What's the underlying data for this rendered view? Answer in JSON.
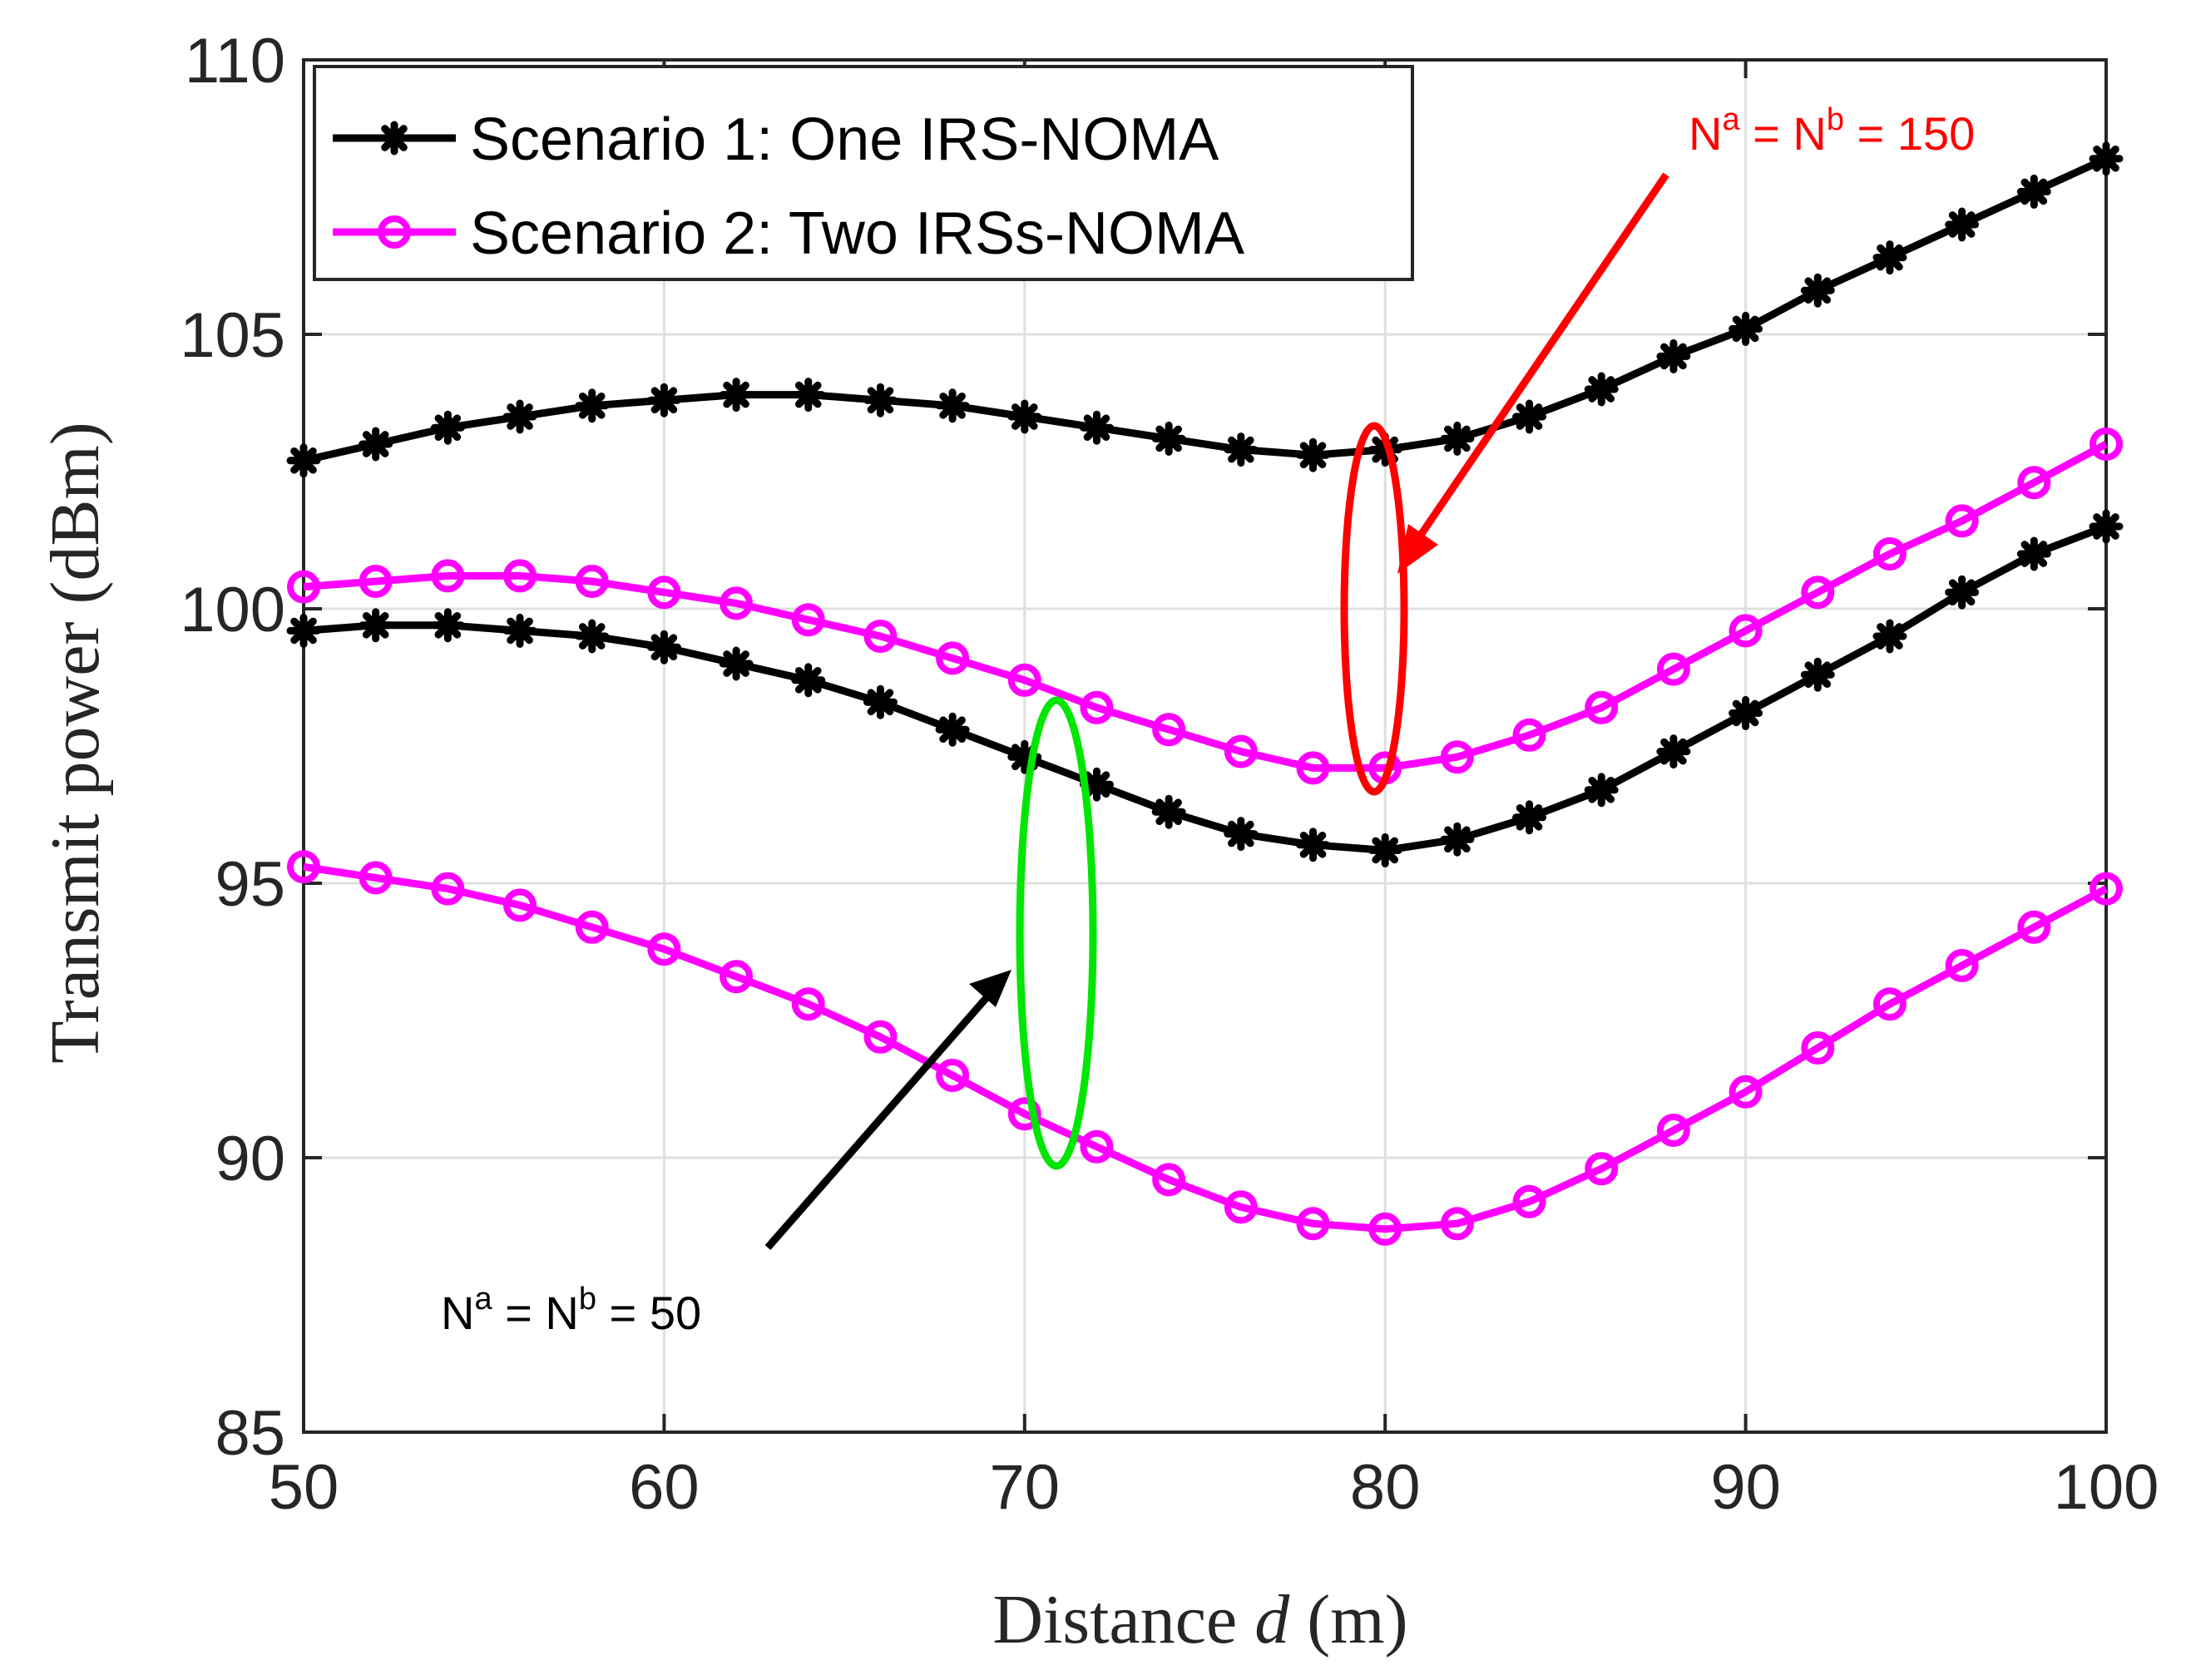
{
  "chart_data": {
    "type": "line",
    "xlabel_prefix": "Distance ",
    "xlabel_var": "d",
    "xlabel_suffix": " (m)",
    "ylabel": "Transmit power (dBm)",
    "xlim": [
      50,
      100
    ],
    "ylim": [
      85,
      110
    ],
    "xticks": [
      50,
      60,
      70,
      80,
      90,
      100
    ],
    "yticks": [
      85,
      90,
      95,
      100,
      105,
      110
    ],
    "grid": true,
    "legend_position": "top-left",
    "legend": [
      {
        "label": "Scenario 1: One IRS-NOMA",
        "color": "#000000",
        "marker": "asterisk"
      },
      {
        "label": "Scenario 2: Two IRSs-NOMA",
        "color": "#ff00ff",
        "marker": "circle"
      }
    ],
    "x": [
      50,
      52,
      54,
      56,
      58,
      60,
      62,
      64,
      66,
      68,
      70,
      72,
      74,
      76,
      78,
      80,
      82,
      84,
      86,
      88,
      90,
      92,
      94,
      96,
      98,
      100
    ],
    "series": [
      {
        "name": "Scenario 1: One IRS-NOMA",
        "group": "N=150",
        "color": "#000000",
        "marker": "asterisk",
        "values": [
          102.7,
          103.0,
          103.3,
          103.5,
          103.7,
          103.8,
          103.9,
          103.9,
          103.8,
          103.7,
          103.5,
          103.3,
          103.1,
          102.9,
          102.8,
          102.9,
          103.1,
          103.5,
          104.0,
          104.6,
          105.1,
          105.8,
          106.4,
          107.0,
          107.6,
          108.2
        ]
      },
      {
        "name": "Scenario 2: Two IRSs-NOMA",
        "group": "N=150",
        "color": "#ff00ff",
        "marker": "circle",
        "values": [
          100.4,
          100.5,
          100.6,
          100.6,
          100.5,
          100.3,
          100.1,
          99.8,
          99.5,
          99.1,
          98.7,
          98.2,
          97.8,
          97.4,
          97.1,
          97.1,
          97.3,
          97.7,
          98.2,
          98.9,
          99.6,
          100.3,
          101.0,
          101.6,
          102.3,
          103.0
        ]
      },
      {
        "name": "Scenario 1: One IRS-NOMA",
        "group": "N=50",
        "color": "#000000",
        "marker": "asterisk",
        "values": [
          99.6,
          99.7,
          99.7,
          99.6,
          99.5,
          99.3,
          99.0,
          98.7,
          98.3,
          97.8,
          97.3,
          96.8,
          96.3,
          95.9,
          95.7,
          95.6,
          95.8,
          96.2,
          96.7,
          97.4,
          98.1,
          98.8,
          99.5,
          100.3,
          101.0,
          101.5
        ]
      },
      {
        "name": "Scenario 2: Two IRSs-NOMA",
        "group": "N=50",
        "color": "#ff00ff",
        "marker": "circle",
        "values": [
          95.3,
          95.1,
          94.9,
          94.6,
          94.2,
          93.8,
          93.3,
          92.8,
          92.2,
          91.5,
          90.8,
          90.2,
          89.6,
          89.1,
          88.8,
          88.7,
          88.8,
          89.2,
          89.8,
          90.5,
          91.2,
          92.0,
          92.8,
          93.5,
          94.2,
          94.9
        ]
      }
    ],
    "annotations": [
      {
        "text_base": "N",
        "sup_a": "a",
        "mid": " = N",
        "sup_b": "b",
        "tail": " = 150",
        "color": "#ff0000"
      },
      {
        "text_base": "N",
        "sup_a": "a",
        "mid": " = N",
        "sup_b": "b",
        "tail": " = 50",
        "color": "#000000"
      }
    ],
    "annotation_ellipse_colors": [
      "#ff0000",
      "#00e600"
    ]
  }
}
